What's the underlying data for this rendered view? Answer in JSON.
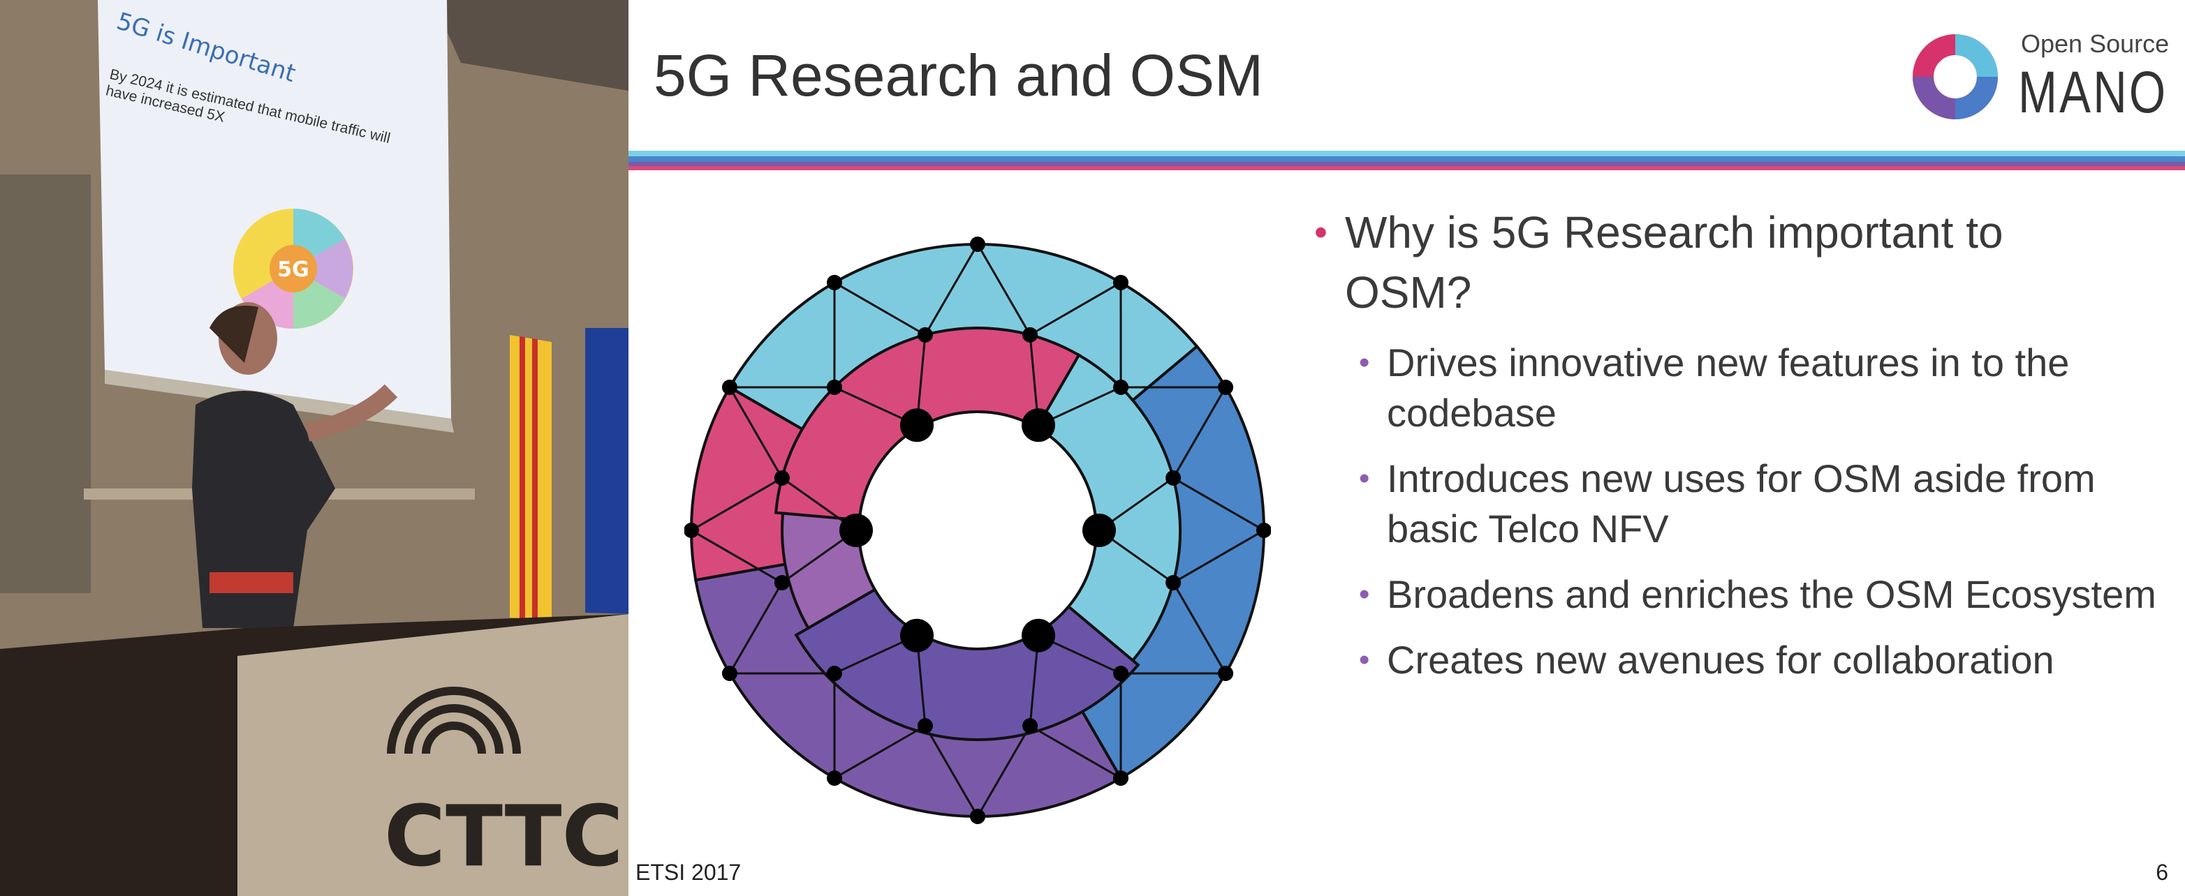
{
  "photo": {
    "screen_title": "5G is Important",
    "screen_text": "By 2024 it is estimated that mobile traffic will have increased 5X",
    "screen_center": "5G",
    "podium_logo": "CTTC"
  },
  "slide": {
    "title": "5G Research and OSM",
    "logo": {
      "line1": "Open Source",
      "line2": "MANO"
    },
    "bullets": [
      {
        "text": "Why is 5G Research important to OSM?",
        "sub": [
          "Drives innovative new features in to the codebase",
          "Introduces new uses for OSM aside from basic Telco NFV",
          "Broadens and enriches the OSM Ecosystem",
          "Creates new avenues for collaboration"
        ]
      }
    ],
    "footer": "ETSI 2017",
    "page_number": 6
  }
}
